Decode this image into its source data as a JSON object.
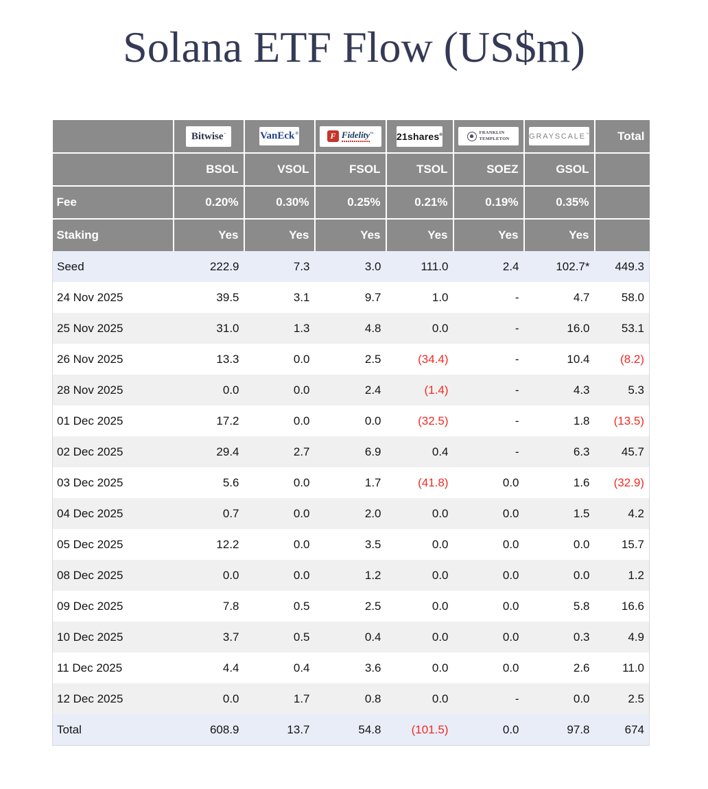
{
  "title": "Solana ETF Flow (US$m)",
  "colors": {
    "title_text": "#343a56",
    "header_bg": "#8b8b8b",
    "header_text": "#ffffff",
    "highlight_row_bg": "#e9edf8",
    "stripe_row_bg": "#f0f0f0",
    "negative_text": "#ef2b23",
    "bitwise_navy": "#2e3148",
    "vaneck_blue": "#26418c",
    "fidelity_red": "#c5352c",
    "fidelity_navy": "#16395c",
    "franklin_dark": "#3a3a4e",
    "grayscale_gray": "#82828a"
  },
  "table": {
    "total_header": "Total",
    "fee_label": "Fee",
    "staking_label": "Staking",
    "providers": [
      {
        "id": "bitwise",
        "logo_text": "Bitwise",
        "ticker": "BSOL",
        "fee": "0.20%",
        "staking": "Yes"
      },
      {
        "id": "vaneck",
        "logo_text": "VanEck",
        "ticker": "VSOL",
        "fee": "0.30%",
        "staking": "Yes"
      },
      {
        "id": "fidelity",
        "logo_letter": "F",
        "logo_text": "Fidelity",
        "ticker": "FSOL",
        "fee": "0.25%",
        "staking": "Yes"
      },
      {
        "id": "21shares",
        "logo_text": "21shares",
        "ticker": "TSOL",
        "fee": "0.21%",
        "staking": "Yes"
      },
      {
        "id": "franklin-templeton",
        "logo_text_line1": "FRANKLIN",
        "logo_text_line2": "TEMPLETON",
        "ticker": "SOEZ",
        "fee": "0.19%",
        "staking": "Yes"
      },
      {
        "id": "grayscale",
        "logo_text": "GRAYSCALE",
        "ticker": "GSOL",
        "fee": "0.35%",
        "staking": "Yes"
      }
    ],
    "rows": [
      {
        "label": "Seed",
        "highlight": true,
        "values": [
          "222.9",
          "7.3",
          "3.0",
          "111.0",
          "2.4",
          "102.7*"
        ],
        "total": "449.3"
      },
      {
        "label": "24 Nov 2025",
        "values": [
          "39.5",
          "3.1",
          "9.7",
          "1.0",
          "-",
          "4.7"
        ],
        "total": "58.0"
      },
      {
        "label": "25 Nov 2025",
        "values": [
          "31.0",
          "1.3",
          "4.8",
          "0.0",
          "-",
          "16.0"
        ],
        "total": "53.1"
      },
      {
        "label": "26 Nov 2025",
        "values": [
          "13.3",
          "0.0",
          "2.5",
          "(34.4)",
          "-",
          "10.4"
        ],
        "total": "(8.2)"
      },
      {
        "label": "28 Nov 2025",
        "values": [
          "0.0",
          "0.0",
          "2.4",
          "(1.4)",
          "-",
          "4.3"
        ],
        "total": "5.3"
      },
      {
        "label": "01 Dec 2025",
        "values": [
          "17.2",
          "0.0",
          "0.0",
          "(32.5)",
          "-",
          "1.8"
        ],
        "total": "(13.5)"
      },
      {
        "label": "02 Dec 2025",
        "values": [
          "29.4",
          "2.7",
          "6.9",
          "0.4",
          "-",
          "6.3"
        ],
        "total": "45.7"
      },
      {
        "label": "03 Dec 2025",
        "values": [
          "5.6",
          "0.0",
          "1.7",
          "(41.8)",
          "0.0",
          "1.6"
        ],
        "total": "(32.9)"
      },
      {
        "label": "04 Dec 2025",
        "values": [
          "0.7",
          "0.0",
          "2.0",
          "0.0",
          "0.0",
          "1.5"
        ],
        "total": "4.2"
      },
      {
        "label": "05 Dec 2025",
        "values": [
          "12.2",
          "0.0",
          "3.5",
          "0.0",
          "0.0",
          "0.0"
        ],
        "total": "15.7"
      },
      {
        "label": "08 Dec 2025",
        "values": [
          "0.0",
          "0.0",
          "1.2",
          "0.0",
          "0.0",
          "0.0"
        ],
        "total": "1.2"
      },
      {
        "label": "09 Dec 2025",
        "values": [
          "7.8",
          "0.5",
          "2.5",
          "0.0",
          "0.0",
          "5.8"
        ],
        "total": "16.6"
      },
      {
        "label": "10 Dec 2025",
        "values": [
          "3.7",
          "0.5",
          "0.4",
          "0.0",
          "0.0",
          "0.3"
        ],
        "total": "4.9"
      },
      {
        "label": "11 Dec 2025",
        "values": [
          "4.4",
          "0.4",
          "3.6",
          "0.0",
          "0.0",
          "2.6"
        ],
        "total": "11.0"
      },
      {
        "label": "12 Dec 2025",
        "values": [
          "0.0",
          "1.7",
          "0.8",
          "0.0",
          "-",
          "0.0"
        ],
        "total": "2.5"
      }
    ],
    "total_row": {
      "label": "Total",
      "values": [
        "608.9",
        "13.7",
        "54.8",
        "(101.5)",
        "0.0",
        "97.8"
      ],
      "total": "674"
    }
  },
  "chart_data": {
    "type": "table",
    "title": "Solana ETF Flow (US$m)",
    "issuers": [
      "Bitwise",
      "VanEck",
      "Fidelity",
      "21shares",
      "Franklin Templeton",
      "Grayscale"
    ],
    "funds": [
      "BSOL",
      "VSOL",
      "FSOL",
      "TSOL",
      "SOEZ",
      "GSOL"
    ],
    "fees_pct": [
      0.2,
      0.3,
      0.25,
      0.21,
      0.19,
      0.35
    ],
    "staking": [
      "Yes",
      "Yes",
      "Yes",
      "Yes",
      "Yes",
      "Yes"
    ],
    "rows": [
      {
        "label": "Seed",
        "values": [
          222.9,
          7.3,
          3.0,
          111.0,
          2.4,
          102.7
        ],
        "total": 449.3
      },
      {
        "label": "24 Nov 2025",
        "values": [
          39.5,
          3.1,
          9.7,
          1.0,
          null,
          4.7
        ],
        "total": 58.0
      },
      {
        "label": "25 Nov 2025",
        "values": [
          31.0,
          1.3,
          4.8,
          0.0,
          null,
          16.0
        ],
        "total": 53.1
      },
      {
        "label": "26 Nov 2025",
        "values": [
          13.3,
          0.0,
          2.5,
          -34.4,
          null,
          10.4
        ],
        "total": -8.2
      },
      {
        "label": "28 Nov 2025",
        "values": [
          0.0,
          0.0,
          2.4,
          -1.4,
          null,
          4.3
        ],
        "total": 5.3
      },
      {
        "label": "01 Dec 2025",
        "values": [
          17.2,
          0.0,
          0.0,
          -32.5,
          null,
          1.8
        ],
        "total": -13.5
      },
      {
        "label": "02 Dec 2025",
        "values": [
          29.4,
          2.7,
          6.9,
          0.4,
          null,
          6.3
        ],
        "total": 45.7
      },
      {
        "label": "03 Dec 2025",
        "values": [
          5.6,
          0.0,
          1.7,
          -41.8,
          0.0,
          1.6
        ],
        "total": -32.9
      },
      {
        "label": "04 Dec 2025",
        "values": [
          0.7,
          0.0,
          2.0,
          0.0,
          0.0,
          1.5
        ],
        "total": 4.2
      },
      {
        "label": "05 Dec 2025",
        "values": [
          12.2,
          0.0,
          3.5,
          0.0,
          0.0,
          0.0
        ],
        "total": 15.7
      },
      {
        "label": "08 Dec 2025",
        "values": [
          0.0,
          0.0,
          1.2,
          0.0,
          0.0,
          0.0
        ],
        "total": 1.2
      },
      {
        "label": "09 Dec 2025",
        "values": [
          7.8,
          0.5,
          2.5,
          0.0,
          0.0,
          5.8
        ],
        "total": 16.6
      },
      {
        "label": "10 Dec 2025",
        "values": [
          3.7,
          0.5,
          0.4,
          0.0,
          0.0,
          0.3
        ],
        "total": 4.9
      },
      {
        "label": "11 Dec 2025",
        "values": [
          4.4,
          0.4,
          3.6,
          0.0,
          0.0,
          2.6
        ],
        "total": 11.0
      },
      {
        "label": "12 Dec 2025",
        "values": [
          0.0,
          1.7,
          0.8,
          0.0,
          null,
          0.0
        ],
        "total": 2.5
      }
    ],
    "total_row": {
      "label": "Total",
      "values": [
        608.9,
        13.7,
        54.8,
        -101.5,
        0.0,
        97.8
      ],
      "total": 674
    }
  }
}
